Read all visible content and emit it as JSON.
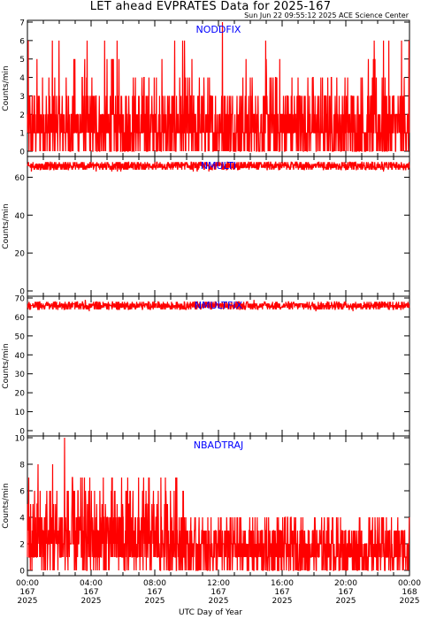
{
  "header": {
    "title": "LET ahead EVPRATES Data for 2025-167",
    "timestamp": "Sun Jun 22 09:55:12 2025 ACE Science Center"
  },
  "colors": {
    "series": "#ff0000",
    "panel_label": "#0000ff",
    "axis": "#000000"
  },
  "chart_data": [
    {
      "type": "line",
      "title": "NODDFIX",
      "ylabel": "Counts/min",
      "ylim": [
        0,
        7
      ],
      "yticks": [
        0,
        1,
        2,
        3,
        4,
        5,
        6,
        7
      ],
      "xlim_hours": [
        0,
        24
      ],
      "x": "minutes 0-1440",
      "series_summary": {
        "typical_range": [
          0,
          3
        ],
        "occasional_max": 7
      }
    },
    {
      "type": "line",
      "title": "NMULTI",
      "ylabel": "Counts/min",
      "ylim": [
        0,
        70
      ],
      "yticks": [
        0,
        20,
        40,
        60
      ],
      "xlim_hours": [
        0,
        24
      ],
      "series_summary": {
        "typical_range": [
          64,
          68
        ],
        "mean": 66
      }
    },
    {
      "type": "line",
      "title": "NMULTFIX",
      "ylabel": "Counts/min",
      "ylim": [
        0,
        70
      ],
      "yticks": [
        0,
        10,
        20,
        30,
        40,
        50,
        60,
        70
      ],
      "xlim_hours": [
        0,
        24
      ],
      "series_summary": {
        "typical_range": [
          63,
          68
        ],
        "mean": 66
      }
    },
    {
      "type": "line",
      "title": "NBADTRAJ",
      "ylabel": "Counts/min",
      "ylim": [
        0,
        10
      ],
      "yticks": [
        0,
        2,
        4,
        6,
        8,
        10
      ],
      "xlim_hours": [
        0,
        24
      ],
      "series_summary": {
        "early_range": [
          0,
          8
        ],
        "late_range": [
          0,
          3
        ],
        "max": 10
      }
    }
  ],
  "xaxis": {
    "label": "UTC Day of Year",
    "ticks": [
      {
        "time": "00:00",
        "doy": "167",
        "year": "2025"
      },
      {
        "time": "04:00",
        "doy": "167",
        "year": "2025"
      },
      {
        "time": "08:00",
        "doy": "167",
        "year": "2025"
      },
      {
        "time": "12:00",
        "doy": "167",
        "year": "2025"
      },
      {
        "time": "16:00",
        "doy": "167",
        "year": "2025"
      },
      {
        "time": "20:00",
        "doy": "167",
        "year": "2025"
      },
      {
        "time": "00:00",
        "doy": "168",
        "year": "2025"
      }
    ]
  }
}
